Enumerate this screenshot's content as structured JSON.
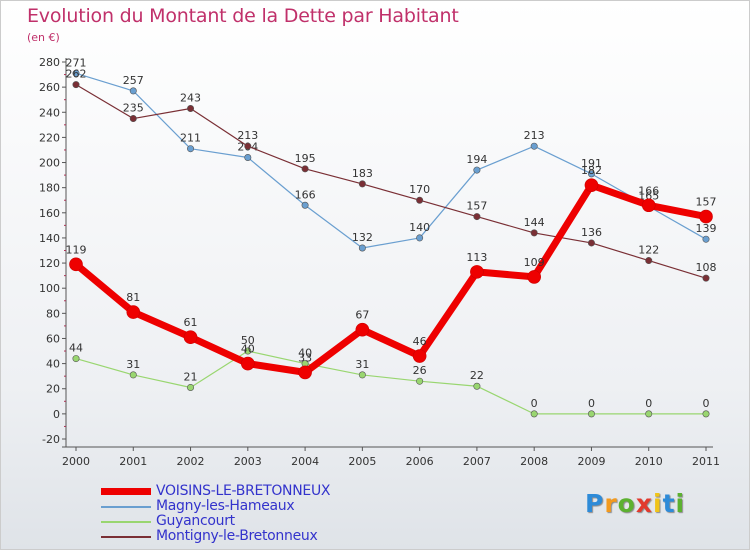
{
  "chart_data": {
    "type": "line",
    "title": "Evolution du Montant de la Dette par Habitant",
    "subtitle": "(en €)",
    "x": [
      "2000",
      "2001",
      "2002",
      "2003",
      "2004",
      "2005",
      "2006",
      "2007",
      "2008",
      "2009",
      "2010",
      "2011"
    ],
    "ylim": [
      -20,
      280
    ],
    "yticks": [
      -20,
      0,
      20,
      40,
      60,
      80,
      100,
      120,
      140,
      160,
      180,
      200,
      220,
      240,
      260,
      280
    ],
    "grid": false,
    "legend_position": "bottom-left",
    "series": [
      {
        "name": "VOISINS-LE-BRETONNEUX",
        "color": "#ee0000",
        "values": [
          119,
          81,
          61,
          40,
          33,
          67,
          46,
          113,
          109,
          182,
          166,
          157
        ]
      },
      {
        "name": "Magny-les-Hameaux",
        "color": "#6a9fd0",
        "values": [
          271,
          257,
          211,
          204,
          166,
          132,
          140,
          194,
          213,
          191,
          165,
          139
        ]
      },
      {
        "name": "Guyancourt",
        "color": "#99d670",
        "values": [
          44,
          31,
          21,
          50,
          40,
          31,
          26,
          22,
          0,
          0,
          0,
          0
        ]
      },
      {
        "name": "Montigny-le-Bretonneux",
        "color": "#7a2f35",
        "values": [
          262,
          235,
          243,
          213,
          195,
          183,
          170,
          157,
          144,
          136,
          122,
          108
        ]
      }
    ]
  },
  "legend": {
    "items": [
      {
        "label": "VOISINS-LE-BRETONNEUX",
        "color": "#ee0000"
      },
      {
        "label": "Magny-les-Hameaux",
        "color": "#6a9fd0"
      },
      {
        "label": "Guyancourt",
        "color": "#99d670"
      },
      {
        "label": "Montigny-le-Bretonneux",
        "color": "#7a2f35"
      }
    ]
  },
  "logo": {
    "letters": [
      "P",
      "r",
      "o",
      "x",
      "i",
      "t",
      "i"
    ],
    "colors": [
      "#2e8bd8",
      "#f39a1e",
      "#5cb130",
      "#e23a2e",
      "#f0c419",
      "#2e8bd8",
      "#5cb130"
    ]
  }
}
